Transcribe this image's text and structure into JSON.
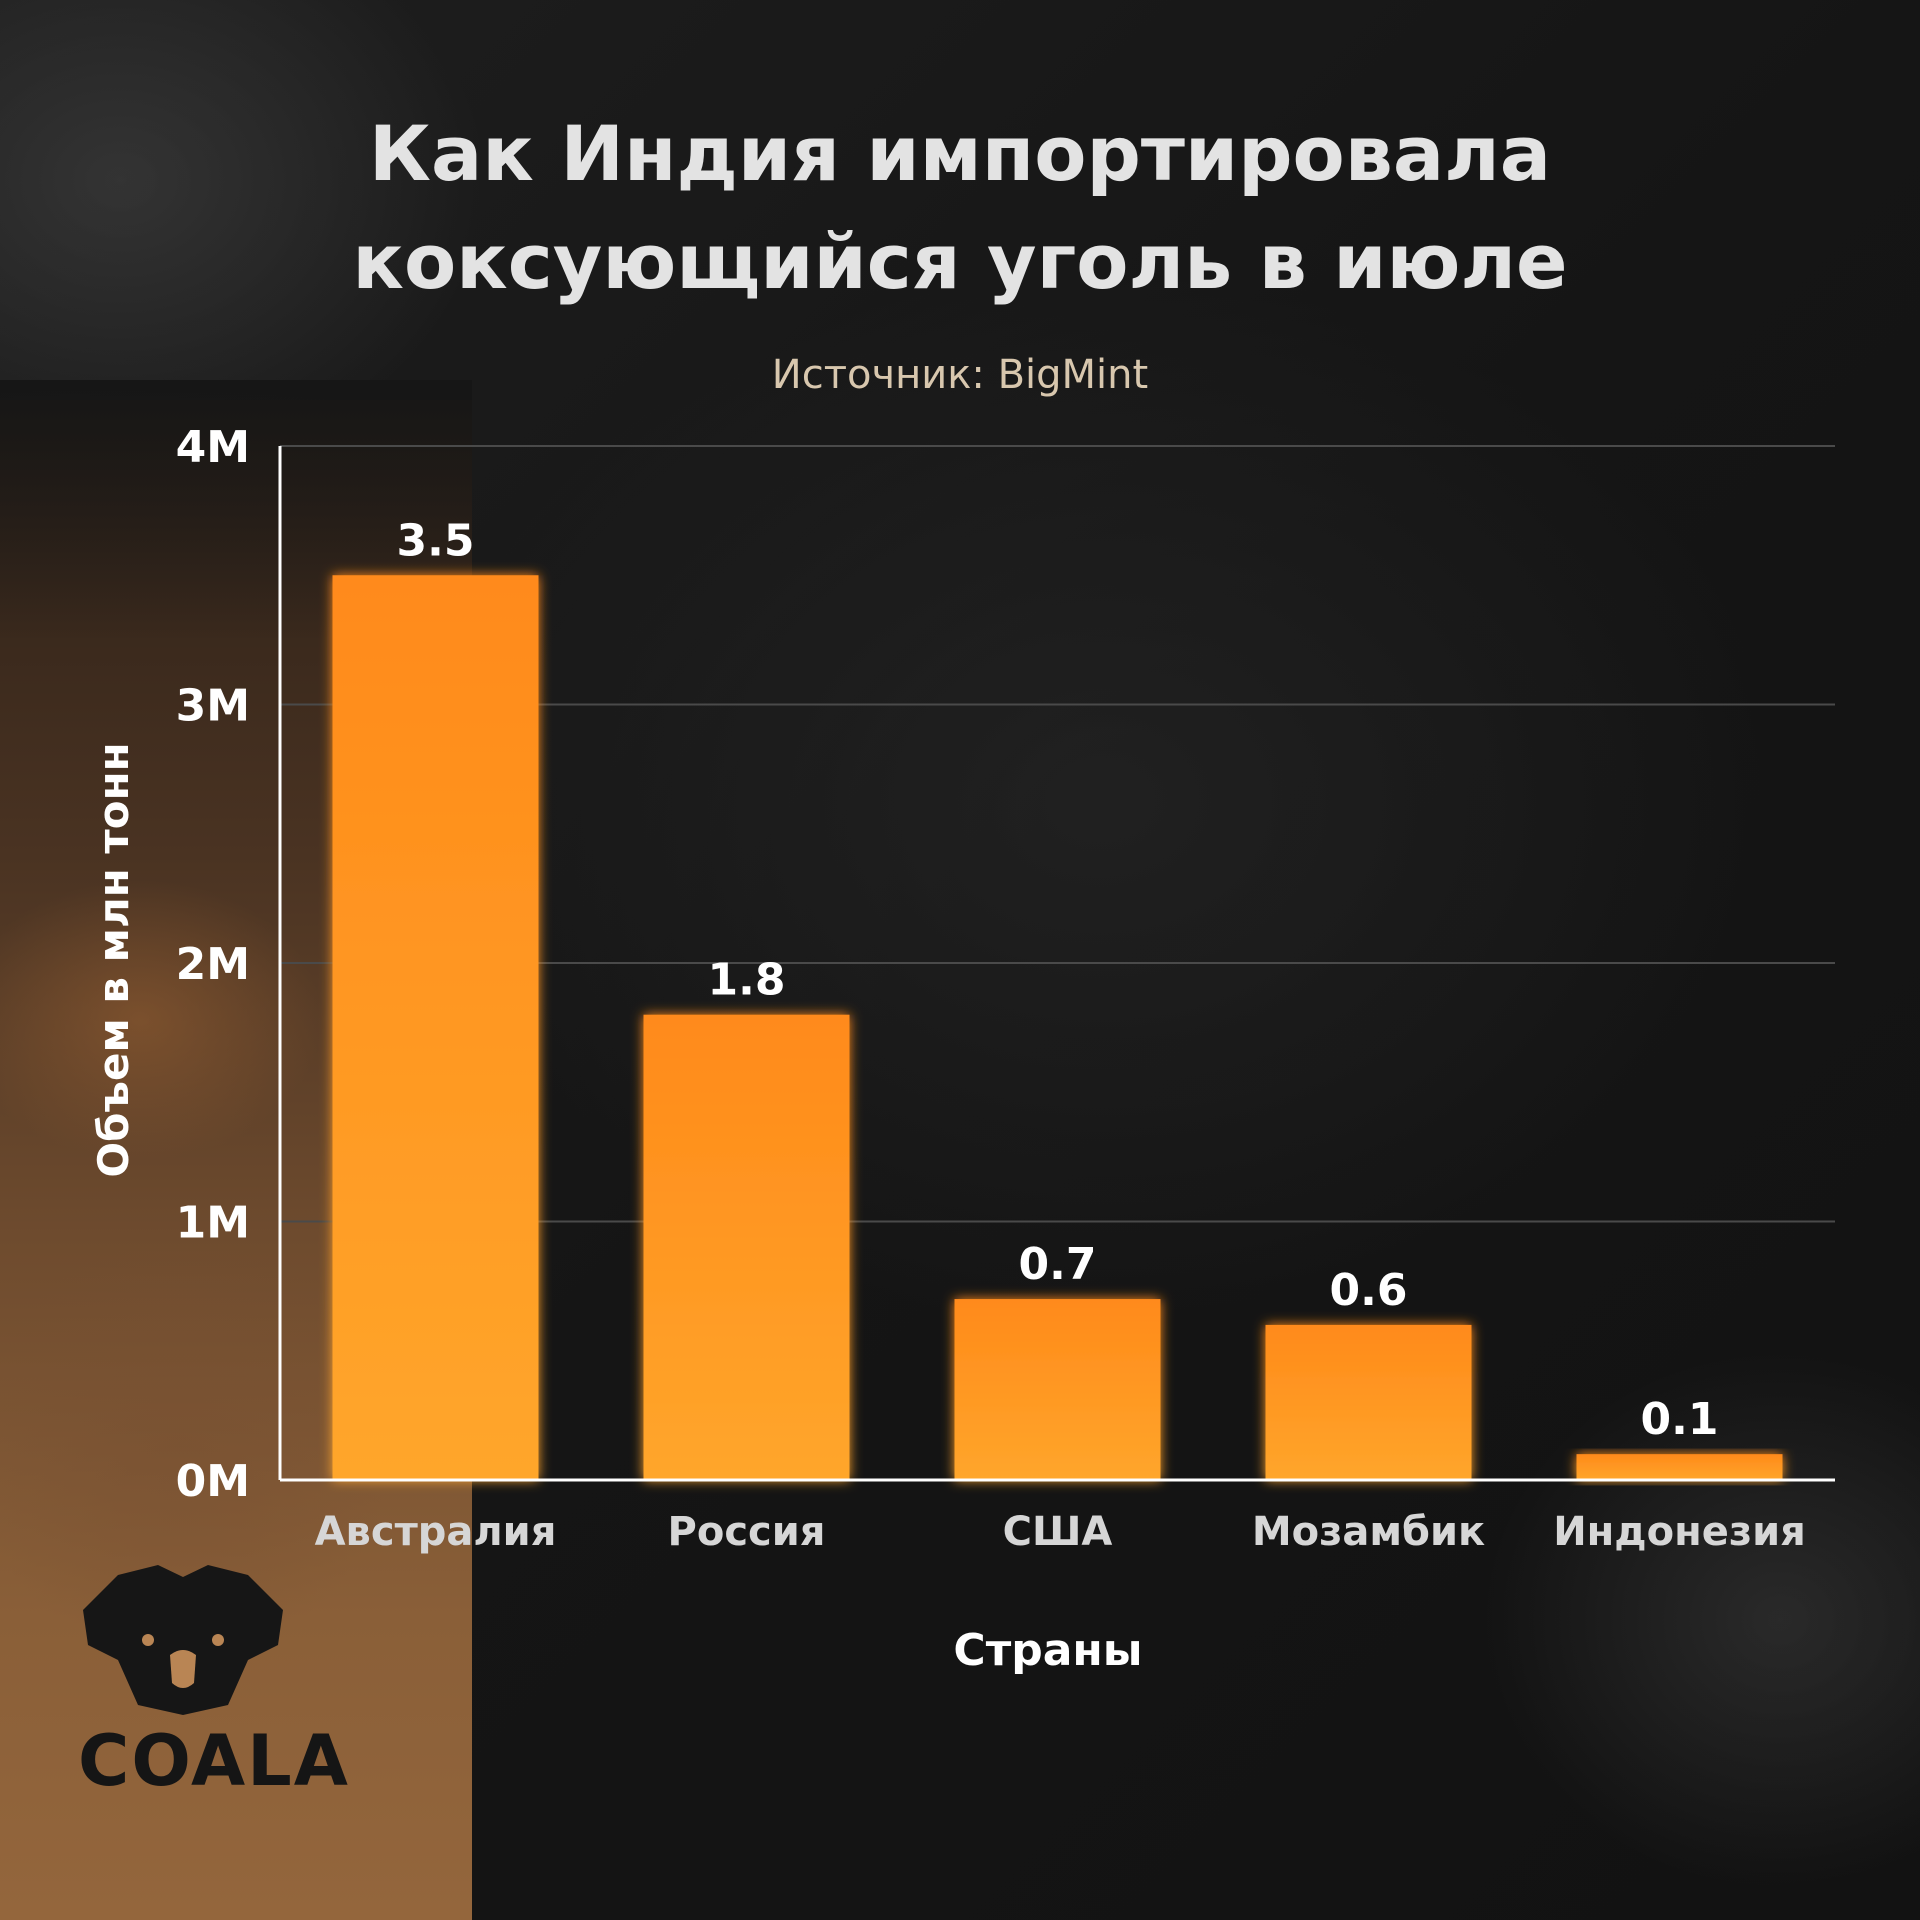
{
  "header": {
    "title_line1": "Как Индия импортировала",
    "title_line2": "коксующийся уголь в июле",
    "source": "Источник: BigMint"
  },
  "brand": {
    "logo_text": "COALA"
  },
  "colors": {
    "bar_top": "#ff8a1a",
    "bar_bottom": "#ffa62b",
    "background": "#161616",
    "text": "#e3e3e3"
  },
  "chart_data": {
    "type": "bar",
    "categories": [
      "Австралия",
      "Россия",
      "США",
      "Мозамбик",
      "Индонезия"
    ],
    "values": [
      3.5,
      1.8,
      0.7,
      0.6,
      0.1
    ],
    "data_labels": [
      "3.5",
      "1.8",
      "0.7",
      "0.6",
      "0.1"
    ],
    "ylim": [
      0,
      4
    ],
    "yticks": [
      0,
      1,
      2,
      3,
      4
    ],
    "ytick_labels": [
      "0M",
      "1M",
      "2M",
      "3M",
      "4M"
    ],
    "xlabel": "Страны",
    "ylabel": "Объем в млн тонн",
    "grid": true
  }
}
